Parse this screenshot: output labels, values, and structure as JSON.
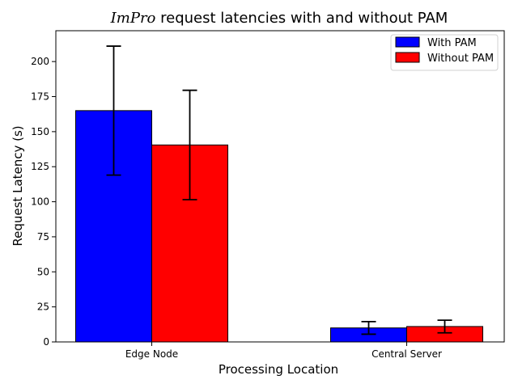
{
  "chart_data": {
    "type": "bar",
    "title_italic": "ImPro",
    "title_rest": " request latencies with and without PAM",
    "xlabel": "Processing Location",
    "ylabel": "Request Latency (s)",
    "categories": [
      "Edge Node",
      "Central Server"
    ],
    "series": [
      {
        "name": "With PAM",
        "values": [
          165,
          10
        ],
        "errors": [
          46,
          4.5
        ],
        "color": "#0000ff"
      },
      {
        "name": "Without PAM",
        "values": [
          140.5,
          11
        ],
        "errors": [
          39,
          4.5
        ],
        "color": "#ff0000"
      }
    ],
    "ylim": [
      0,
      222
    ],
    "yticks": [
      0,
      25,
      50,
      75,
      100,
      125,
      150,
      175,
      200
    ],
    "grid": false,
    "legend_position": "top-right"
  }
}
